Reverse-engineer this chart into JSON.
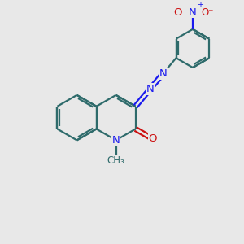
{
  "bg_color": "#e8e8e8",
  "bond_color": "#2e6b6b",
  "n_color": "#1a1aee",
  "o_color": "#cc1111",
  "lw": 1.6,
  "fs": 9.5,
  "fs_small": 8.5,
  "xlim": [
    0,
    10
  ],
  "ylim": [
    0,
    10
  ]
}
